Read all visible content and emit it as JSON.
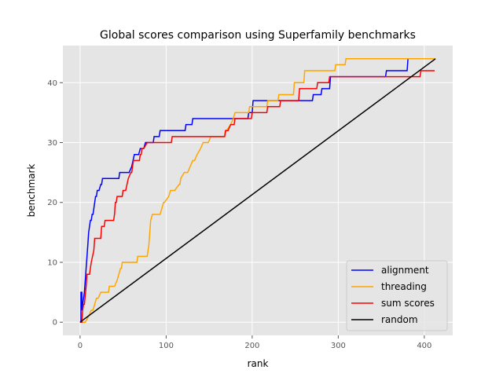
{
  "chart_data": {
    "type": "line",
    "title": "Global scores comparison using Superfamily benchmarks",
    "xlabel": "rank",
    "ylabel": "benchmark",
    "xlim": [
      -20,
      433
    ],
    "ylim": [
      -2.2,
      46.2
    ],
    "xticks": [
      0,
      100,
      200,
      300,
      400
    ],
    "yticks": [
      0,
      10,
      20,
      30,
      40
    ],
    "grid": true,
    "legend_position": "lower right",
    "series": [
      {
        "name": "alignment",
        "color": "#0000ff",
        "x": [
          0,
          1,
          1,
          2,
          2,
          3,
          5,
          6,
          7,
          8,
          9,
          10,
          11,
          12,
          13,
          14,
          15,
          16,
          17,
          18,
          19,
          20,
          21,
          22,
          24,
          25,
          26,
          27,
          28,
          45,
          46,
          57,
          60,
          63,
          68,
          70,
          74,
          76,
          85,
          86,
          92,
          93,
          122,
          123,
          127,
          130,
          131,
          172,
          173,
          178,
          179,
          195,
          196,
          200,
          201,
          210,
          211,
          230,
          231,
          270,
          271,
          280,
          281,
          290,
          291,
          300,
          355,
          356,
          380,
          381,
          412
        ],
        "y": [
          0,
          0,
          5,
          5,
          2,
          3,
          5,
          7,
          9,
          11,
          13,
          15,
          16,
          17,
          17,
          18,
          18,
          19,
          20,
          21,
          21,
          22,
          22,
          22,
          23,
          23,
          24,
          24,
          24,
          24,
          25,
          25,
          26,
          28,
          28,
          29,
          29,
          30,
          30,
          31,
          31,
          32,
          32,
          33,
          33,
          33,
          34,
          34,
          34,
          34,
          34,
          34,
          35,
          35,
          37,
          37,
          37,
          37,
          37,
          37,
          38,
          38,
          39,
          39,
          41,
          41,
          41,
          42,
          42,
          44,
          44
        ]
      },
      {
        "name": "threading",
        "color": "#ffa500",
        "x": [
          0,
          3,
          5,
          6,
          10,
          13,
          15,
          17,
          19,
          21,
          24,
          26,
          33,
          34,
          40,
          43,
          45,
          47,
          48,
          49,
          50,
          51,
          52,
          66,
          67,
          78,
          79,
          80,
          81,
          82,
          84,
          93,
          95,
          97,
          98,
          103,
          105,
          108,
          110,
          115,
          116,
          117,
          121,
          125,
          128,
          131,
          133,
          136,
          140,
          143,
          149,
          152,
          155,
          165,
          168,
          170,
          175,
          178,
          180,
          181,
          183,
          186,
          188,
          196,
          197,
          217,
          218,
          230,
          231,
          248,
          249,
          260,
          261,
          296,
          297,
          308,
          309,
          413
        ],
        "y": [
          0,
          0,
          0,
          0,
          1,
          2,
          2,
          3,
          4,
          4,
          5,
          5,
          5,
          6,
          6,
          7,
          8,
          9,
          9,
          10,
          10,
          10,
          10,
          10,
          11,
          11,
          12,
          13,
          15,
          17,
          18,
          18,
          19,
          20,
          20,
          21,
          22,
          22,
          22,
          23,
          23,
          24,
          25,
          25,
          26,
          27,
          27,
          28,
          29,
          30,
          30,
          31,
          31,
          31,
          31,
          32,
          33,
          34,
          35,
          35,
          35,
          35,
          35,
          35,
          36,
          36,
          37,
          37,
          38,
          38,
          40,
          40,
          42,
          42,
          43,
          43,
          44,
          44
        ]
      },
      {
        "name": "sum scores",
        "color": "#ff0000",
        "x": [
          0,
          2,
          3,
          4,
          5,
          7,
          8,
          11,
          12,
          13,
          16,
          17,
          18,
          24,
          25,
          28,
          29,
          30,
          39,
          40,
          41,
          42,
          43,
          47,
          49,
          50,
          53,
          56,
          59,
          60,
          61,
          62,
          63,
          64,
          65,
          69,
          70,
          71,
          72,
          74,
          78,
          80,
          106,
          107,
          158,
          161,
          162,
          168,
          169,
          172,
          175,
          179,
          180,
          199,
          200,
          217,
          218,
          232,
          233,
          254,
          255,
          275,
          276,
          289,
          290,
          395,
          396,
          412
        ],
        "y": [
          0,
          0,
          2,
          3,
          3,
          6,
          8,
          8,
          9,
          10,
          12,
          14,
          14,
          14,
          16,
          16,
          17,
          17,
          17,
          18,
          20,
          20,
          21,
          21,
          21,
          22,
          22,
          24,
          25,
          25,
          26,
          27,
          27,
          27,
          27,
          27,
          28,
          28,
          29,
          29,
          30,
          30,
          30,
          31,
          31,
          31,
          31,
          31,
          32,
          32,
          33,
          33,
          34,
          34,
          35,
          35,
          36,
          36,
          37,
          37,
          39,
          39,
          40,
          40,
          41,
          41,
          42,
          42
        ]
      },
      {
        "name": "random",
        "color": "#000000",
        "x": [
          0,
          413
        ],
        "y": [
          0,
          44
        ]
      }
    ]
  }
}
